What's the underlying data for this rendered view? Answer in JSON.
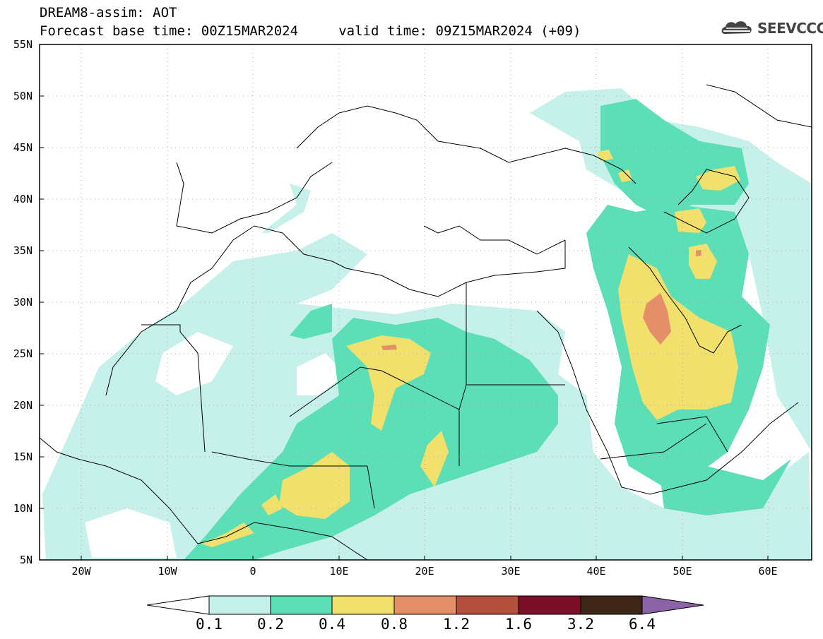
{
  "header": {
    "title": "DREAM8-assim: AOT",
    "subtitle": "Forecast base time: 00Z15MAR2024     valid time: 09Z15MAR2024 (+09)",
    "logo_text": "SEEVCCC"
  },
  "map": {
    "lat_ticks": [
      "55N",
      "50N",
      "45N",
      "40N",
      "35N",
      "30N",
      "25N",
      "20N",
      "15N",
      "10N",
      "5N"
    ],
    "lon_ticks": [
      "20W",
      "10W",
      "0",
      "10E",
      "20E",
      "30E",
      "40E",
      "50E",
      "60E"
    ],
    "lon_range": [
      -25,
      65
    ],
    "lat_range": [
      5,
      55
    ],
    "variable": "AOT"
  },
  "colorbar": {
    "labels": [
      "0.1",
      "0.2",
      "0.4",
      "0.8",
      "1.2",
      "1.6",
      "3.2",
      "6.4"
    ],
    "colors": [
      "#ffffff",
      "#c6f0ea",
      "#5cdfb6",
      "#f2e06c",
      "#e58f68",
      "#b5503e",
      "#7b0f27",
      "#3d2616",
      "#8a62a6"
    ]
  }
}
